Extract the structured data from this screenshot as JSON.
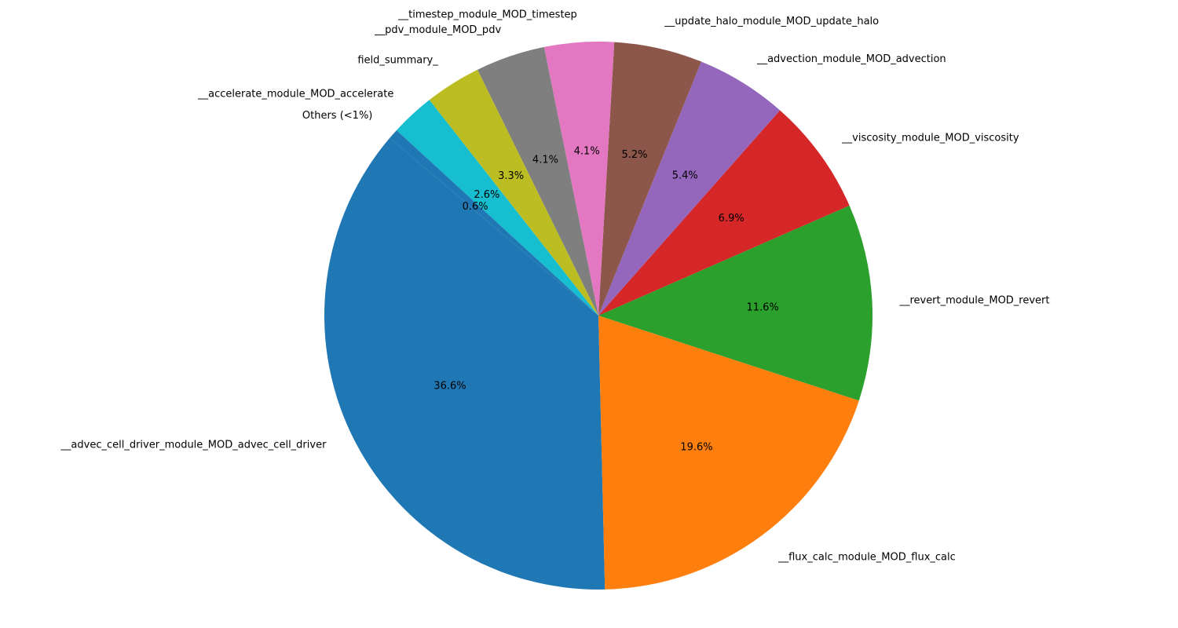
{
  "chart_data": {
    "type": "pie",
    "categories": [
      "__advec_cell_driver_module_MOD_advec_cell_driver",
      "__flux_calc_module_MOD_flux_calc",
      "__revert_module_MOD_revert",
      "__viscosity_module_MOD_viscosity",
      "__advection_module_MOD_advection",
      "__update_halo_module_MOD_update_halo",
      "__timestep_module_MOD_timestep",
      "__pdv_module_MOD_pdv",
      "field_summary_",
      "__accelerate_module_MOD_accelerate",
      "Others (<1%)"
    ],
    "values": [
      36.6,
      19.6,
      11.6,
      6.9,
      5.4,
      5.2,
      4.1,
      4.1,
      3.3,
      2.6,
      0.6
    ],
    "value_labels": [
      "36.6%",
      "19.6%",
      "11.6%",
      "6.9%",
      "5.4%",
      "5.2%",
      "4.1%",
      "4.1%",
      "3.3%",
      "2.6%",
      "0.6%"
    ],
    "colors": [
      "#1f77b4",
      "#ff7f0e",
      "#2ca02c",
      "#d62728",
      "#9467bd",
      "#8c564b",
      "#e377c2",
      "#7f7f7f",
      "#bcbd22",
      "#17becf",
      "#1f77b4"
    ]
  }
}
